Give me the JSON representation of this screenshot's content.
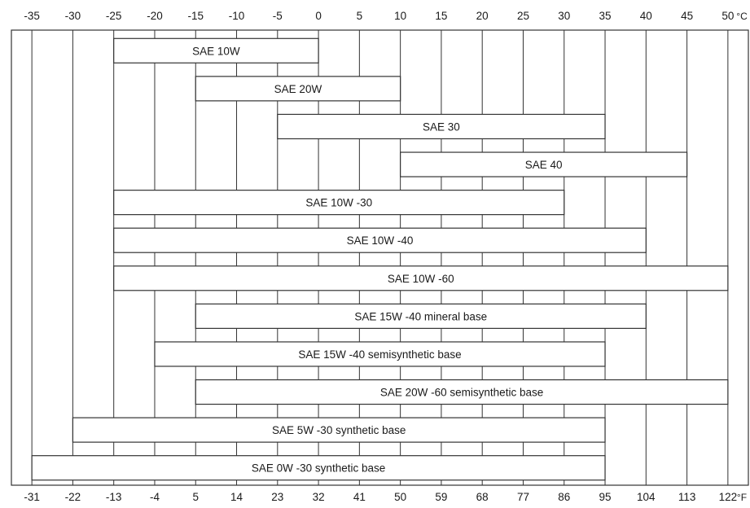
{
  "chart_data": {
    "type": "bar",
    "orientation": "horizontal-range",
    "celsius_ticks": [
      "-35",
      "-30",
      "-25",
      "-20",
      "-15",
      "-10",
      "-5",
      "0",
      "5",
      "10",
      "15",
      "20",
      "25",
      "30",
      "35",
      "40",
      "45",
      "50"
    ],
    "fahrenheit_ticks": [
      "-31",
      "-22",
      "-13",
      "-4",
      "5",
      "14",
      "23",
      "32",
      "41",
      "50",
      "59",
      "68",
      "77",
      "86",
      "95",
      "104",
      "113",
      "122"
    ],
    "celsius_unit": "°C",
    "fahrenheit_unit": "°F",
    "xlim_celsius": [
      -37.5,
      52.5
    ],
    "bars": [
      {
        "label": "SAE 10W",
        "min_c": -25,
        "max_c": 0
      },
      {
        "label": "SAE 20W",
        "min_c": -15,
        "max_c": 10
      },
      {
        "label": "SAE 30",
        "min_c": -5,
        "max_c": 35
      },
      {
        "label": "SAE 40",
        "min_c": 10,
        "max_c": 45
      },
      {
        "label": "SAE 10W -30",
        "min_c": -25,
        "max_c": 30
      },
      {
        "label": "SAE 10W -40",
        "min_c": -25,
        "max_c": 40
      },
      {
        "label": "SAE 10W -60",
        "min_c": -25,
        "max_c": 50
      },
      {
        "label": "SAE 15W -40 mineral base",
        "min_c": -15,
        "max_c": 40
      },
      {
        "label": "SAE 15W -40 semisynthetic base",
        "min_c": -20,
        "max_c": 35
      },
      {
        "label": "SAE 20W -60 semisynthetic base",
        "min_c": -15,
        "max_c": 50
      },
      {
        "label": "SAE 5W -30 synthetic base",
        "min_c": -30,
        "max_c": 35
      },
      {
        "label": "SAE 0W -30 synthetic base",
        "min_c": -35,
        "max_c": 35
      }
    ]
  }
}
